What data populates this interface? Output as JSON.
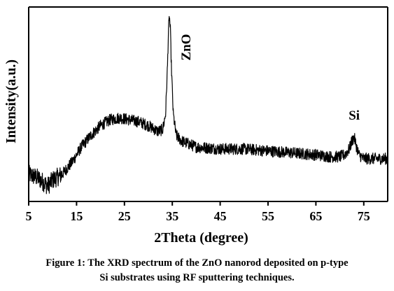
{
  "chart_data": {
    "type": "line",
    "title": "",
    "xlabel": "2Theta (degree)",
    "ylabel": "Intensity(a.u.)",
    "xlim": [
      5,
      80
    ],
    "ylim": [
      0,
      100
    ],
    "xticks": [
      5,
      15,
      25,
      35,
      45,
      55,
      65,
      75
    ],
    "grid": false,
    "legend": "none",
    "annotations": [
      {
        "text": "ZnO",
        "x": 34.4,
        "y": 98
      },
      {
        "text": "Si",
        "x": 73,
        "y": 40
      }
    ],
    "series": [
      {
        "color": "#000000",
        "noise": 3,
        "points": [
          [
            5,
            14
          ],
          [
            7,
            12
          ],
          [
            9,
            8
          ],
          [
            10,
            11
          ],
          [
            12,
            14
          ],
          [
            14,
            20
          ],
          [
            16,
            28
          ],
          [
            18,
            34
          ],
          [
            20,
            39
          ],
          [
            22,
            42
          ],
          [
            24,
            43
          ],
          [
            26,
            42
          ],
          [
            28,
            41
          ],
          [
            30,
            39
          ],
          [
            32,
            36
          ],
          [
            33,
            37
          ],
          [
            33.6,
            45
          ],
          [
            34.0,
            70
          ],
          [
            34.2,
            88
          ],
          [
            34.4,
            95
          ],
          [
            34.6,
            88
          ],
          [
            34.8,
            70
          ],
          [
            35.2,
            45
          ],
          [
            35.8,
            34
          ],
          [
            37,
            31
          ],
          [
            40,
            28
          ],
          [
            45,
            27
          ],
          [
            50,
            27
          ],
          [
            55,
            26
          ],
          [
            60,
            25
          ],
          [
            65,
            24
          ],
          [
            68,
            23
          ],
          [
            70,
            23
          ],
          [
            71,
            24
          ],
          [
            72,
            27
          ],
          [
            72.5,
            31
          ],
          [
            73,
            33
          ],
          [
            73.5,
            28
          ],
          [
            74,
            24
          ],
          [
            75,
            22
          ],
          [
            77,
            22
          ],
          [
            80,
            22
          ]
        ]
      }
    ]
  },
  "caption": {
    "line1": "Figure 1: The XRD spectrum of the ZnO nanorod deposited on p-type",
    "line2": "Si substrates using RF sputtering techniques."
  }
}
